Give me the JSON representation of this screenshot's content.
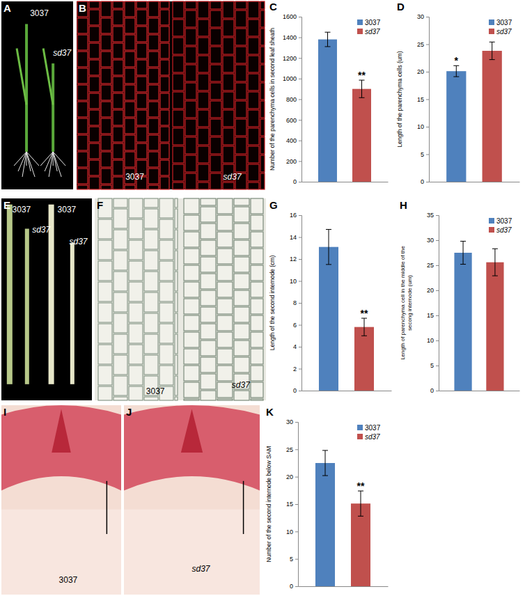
{
  "chart_data": [
    {
      "type": "bar",
      "label": "C",
      "ylabel": "Number of the parenchyma cells in second leaf sheath",
      "categories": [
        null
      ],
      "ylim": [
        0,
        1600
      ],
      "yticks": [
        0,
        200,
        400,
        600,
        800,
        1000,
        1200,
        1400,
        1600
      ],
      "legend": "upper right",
      "tick_labels": "y",
      "series": [
        {
          "name": "3037",
          "color": "#4f81bd",
          "values": [
            1380
          ],
          "errors": [
            70
          ]
        },
        {
          "name": "sd37",
          "color": "#c0504d",
          "values": [
            900
          ],
          "errors": [
            85
          ],
          "significance": [
            "**"
          ]
        }
      ]
    },
    {
      "type": "bar",
      "label": "D",
      "ylabel": "Length of the parenchyma cells (um)",
      "categories": [
        null
      ],
      "ylim": [
        0,
        30
      ],
      "yticks": [
        0,
        5,
        10,
        15,
        20,
        25,
        30
      ],
      "legend": "upper right",
      "tick_labels": "y",
      "series": [
        {
          "name": "3037",
          "color": "#4f81bd",
          "values": [
            20.1
          ],
          "errors": [
            1.0
          ],
          "significance": [
            "*"
          ]
        },
        {
          "name": "sd37",
          "color": "#c0504d",
          "values": [
            23.8
          ],
          "errors": [
            1.6
          ]
        }
      ]
    },
    {
      "type": "bar",
      "label": "G",
      "ylabel": "Length of the second internode (cm)",
      "categories": [
        null
      ],
      "ylim": [
        0,
        16
      ],
      "yticks": [
        0,
        2,
        4,
        6,
        8,
        10,
        12,
        14,
        16
      ],
      "tick_labels": "y",
      "series": [
        {
          "name": "3037",
          "color": "#4f81bd",
          "values": [
            13.1
          ],
          "errors": [
            1.6
          ]
        },
        {
          "name": "sd37",
          "color": "#c0504d",
          "values": [
            5.8
          ],
          "errors": [
            0.8
          ],
          "significance": [
            "**"
          ]
        }
      ]
    },
    {
      "type": "bar",
      "label": "H",
      "ylabel": [
        "Length of parenchyma cell in the middle of the",
        "secong internode (um)"
      ],
      "categories": [
        null
      ],
      "ylim": [
        0,
        35
      ],
      "yticks": [
        0,
        5,
        10,
        15,
        20,
        25,
        30,
        35
      ],
      "legend": "upper right",
      "tick_labels": "y",
      "series": [
        {
          "name": "3037",
          "color": "#4f81bd",
          "values": [
            27.5
          ],
          "errors": [
            2.3
          ]
        },
        {
          "name": "sd37",
          "color": "#c0504d",
          "values": [
            25.6
          ],
          "errors": [
            2.7
          ]
        }
      ]
    },
    {
      "type": "bar",
      "label": "K",
      "ylabel": "Number of the second internode below SAM",
      "categories": [
        null
      ],
      "ylim": [
        0,
        30
      ],
      "yticks": [
        0,
        5,
        10,
        15,
        20,
        25,
        30
      ],
      "legend": "upper right",
      "tick_labels": "y",
      "series": [
        {
          "name": "3037",
          "color": "#4f81bd",
          "values": [
            22.5
          ],
          "errors": [
            2.3
          ]
        },
        {
          "name": "sd37",
          "color": "#c0504d",
          "values": [
            15.1
          ],
          "errors": [
            2.3
          ],
          "significance": [
            "**"
          ]
        }
      ]
    }
  ],
  "images": [
    {
      "label": "A",
      "texts": [
        "3037",
        "sd37"
      ]
    },
    {
      "label": "B",
      "texts": [
        "3037",
        "sd37"
      ]
    },
    {
      "label": "E",
      "texts": [
        "3037",
        "3037",
        "sd37",
        "sd37"
      ]
    },
    {
      "label": "F",
      "texts": [
        "3037",
        "sd37"
      ]
    },
    {
      "label": "I",
      "texts": [
        "3037"
      ]
    },
    {
      "label": "J",
      "texts": [
        "sd37"
      ]
    }
  ]
}
